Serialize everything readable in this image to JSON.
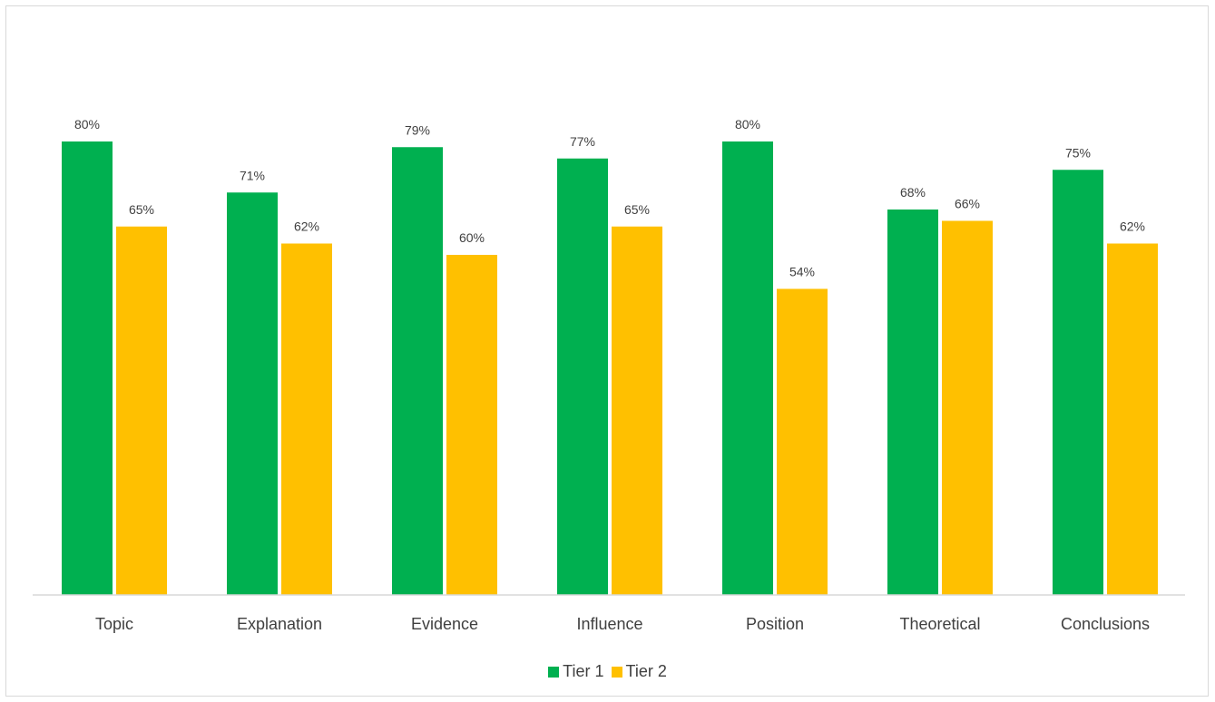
{
  "chart_data": {
    "type": "bar",
    "title": "",
    "xlabel": "",
    "ylabel": "",
    "categories": [
      "Topic",
      "Explanation",
      "Evidence",
      "Influence",
      "Position",
      "Theoretical",
      "Conclusions"
    ],
    "series": [
      {
        "name": "Tier 1",
        "color": "#00b050",
        "values": [
          80,
          71,
          79,
          77,
          80,
          68,
          75
        ],
        "labels": [
          "80%",
          "71%",
          "79%",
          "77%",
          "80%",
          "68%",
          "75%"
        ]
      },
      {
        "name": "Tier 2",
        "color": "#ffc000",
        "values": [
          65,
          62,
          60,
          65,
          54,
          66,
          62
        ],
        "labels": [
          "65%",
          "62%",
          "60%",
          "65%",
          "54%",
          "66%",
          "62%"
        ]
      }
    ],
    "ylim": [
      0,
      100
    ],
    "grid": false,
    "legend_position": "bottom"
  }
}
